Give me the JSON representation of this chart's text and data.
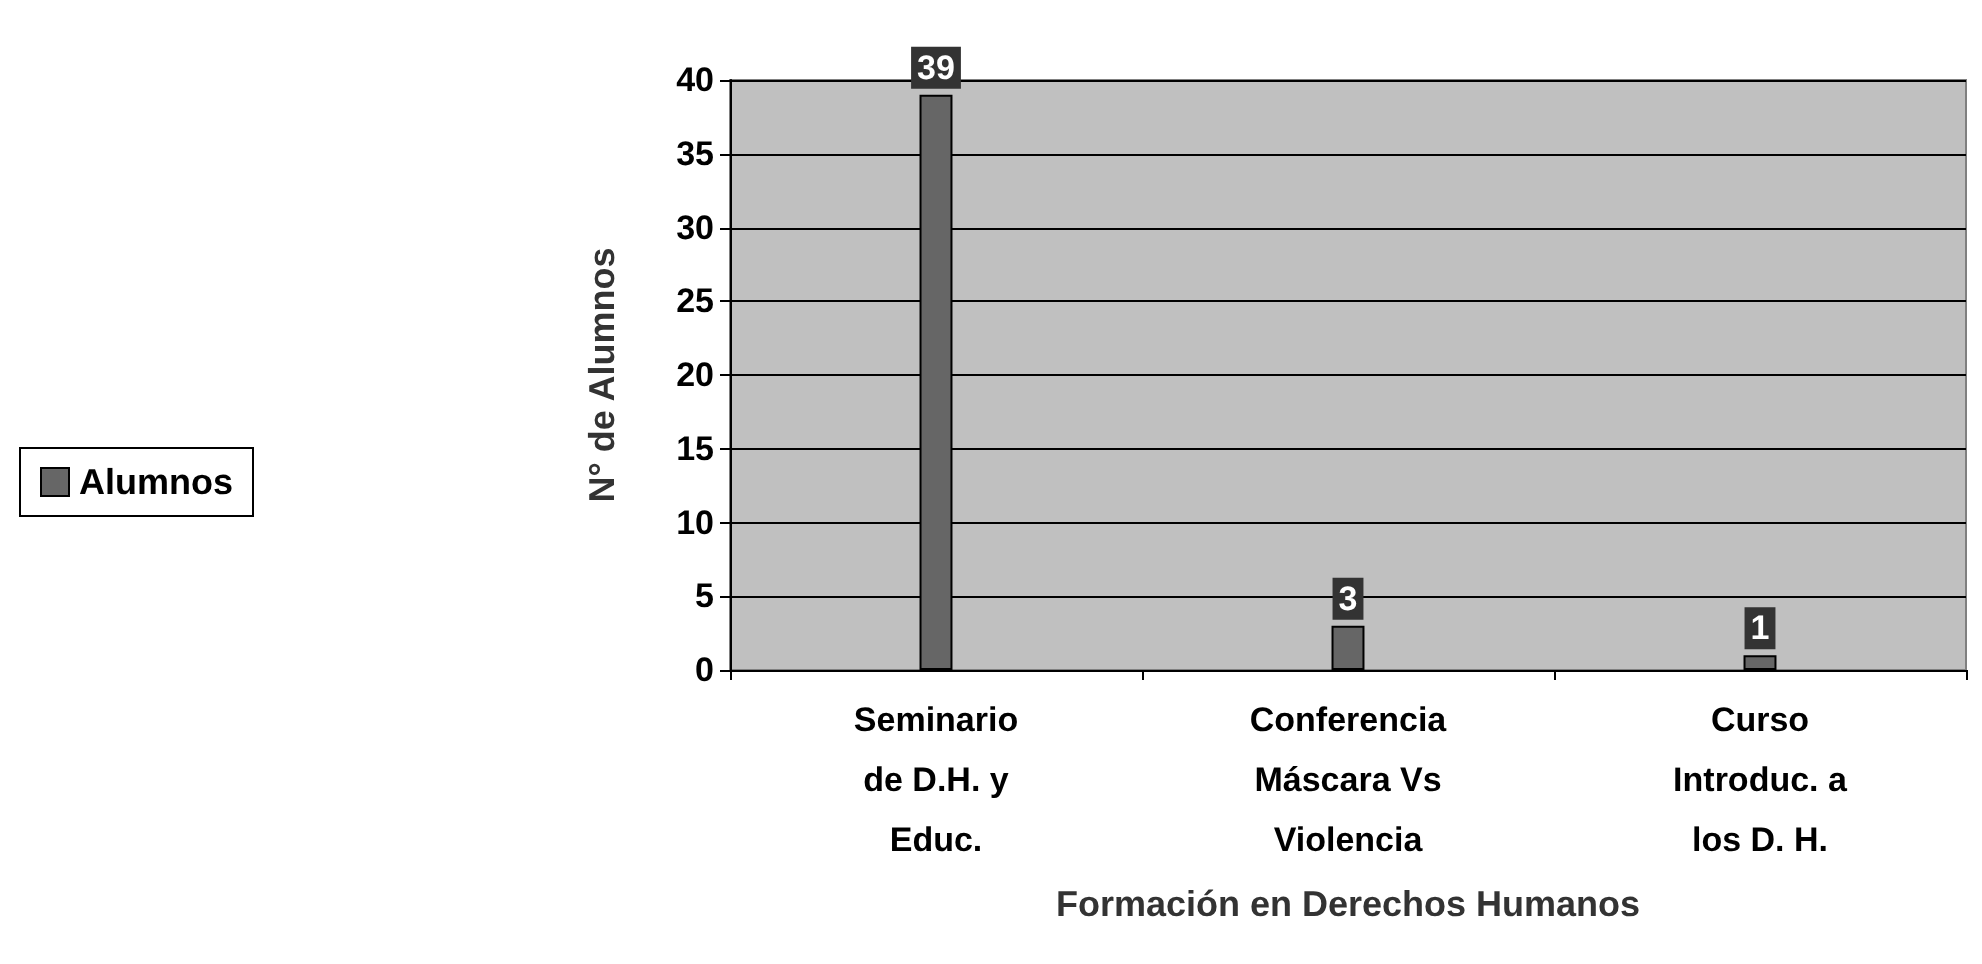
{
  "chart_data": {
    "type": "bar",
    "xlabel": "Formación en Derechos Humanos",
    "ylabel": "N° de Alumnos",
    "categories": [
      "Seminario\nde D.H. y\nEduc.",
      "Conferencia\nMáscara Vs\nViolencia",
      "Curso\nIntroduc. a\nlos D. H."
    ],
    "series": [
      {
        "name": "Alumnos",
        "color": "#666666",
        "values": [
          39,
          3,
          1
        ]
      }
    ],
    "ylim": [
      0,
      40
    ],
    "yticks": [
      0,
      5,
      10,
      15,
      20,
      25,
      30,
      35,
      40
    ],
    "grid": "y",
    "legend": "left",
    "data_labels": true
  }
}
